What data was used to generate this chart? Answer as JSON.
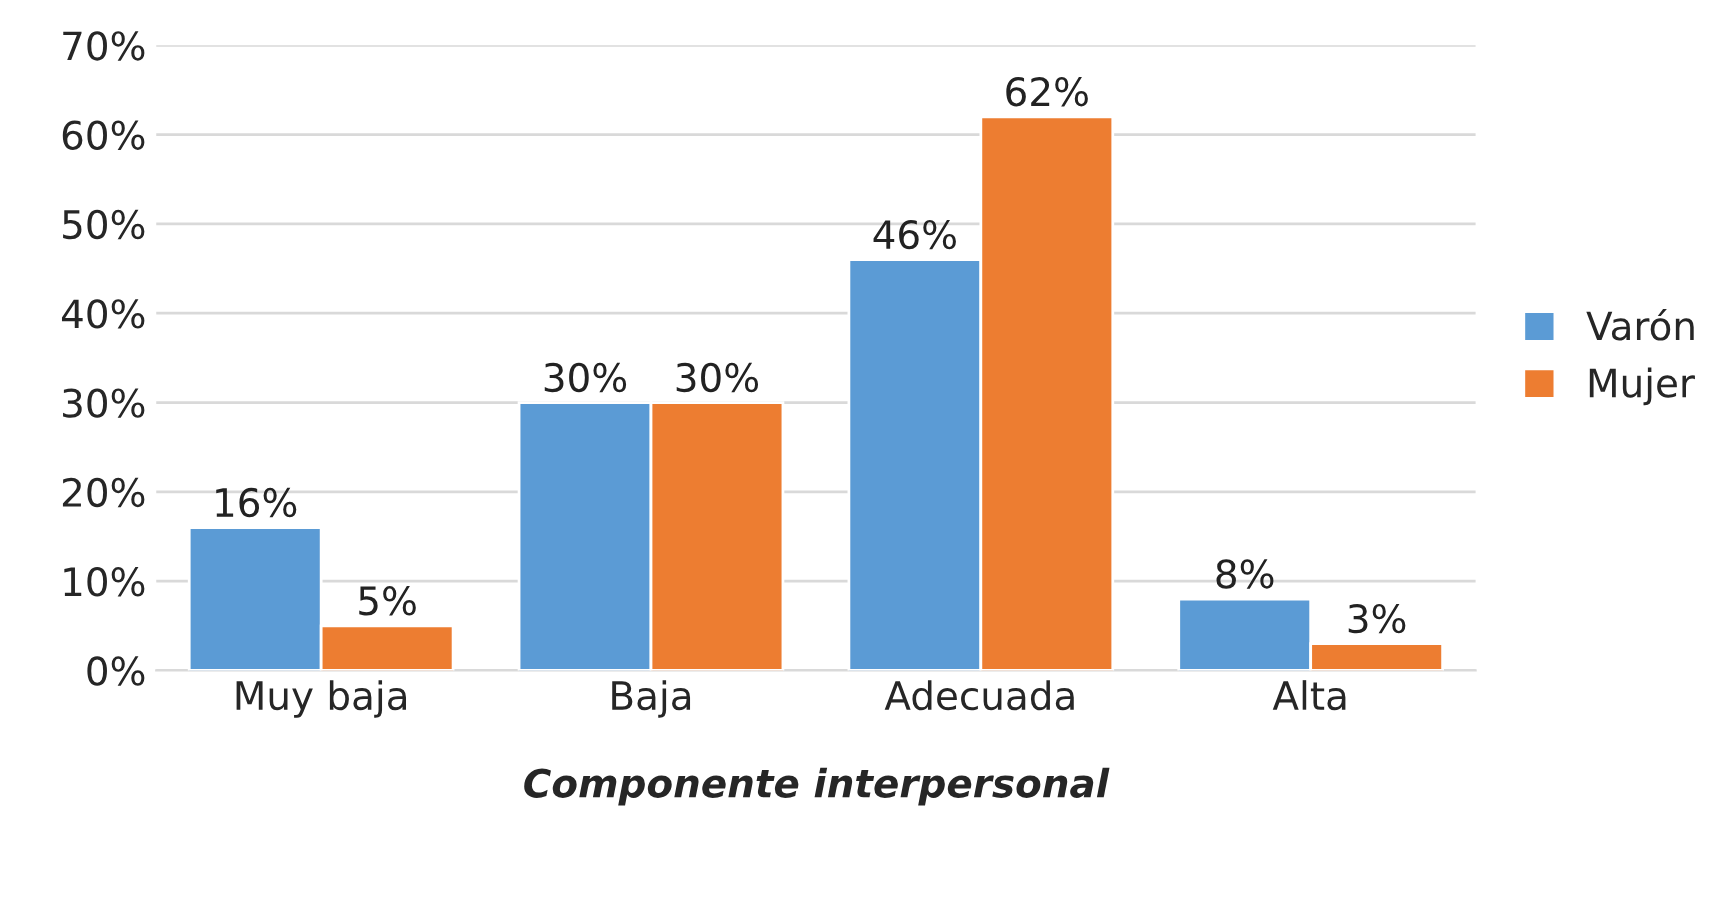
{
  "chart_data": {
    "type": "bar",
    "xlabel": "Componente interpersonal",
    "categories": [
      "Muy baja",
      "Baja",
      "Adecuada",
      "Alta"
    ],
    "series": [
      {
        "name": "Varón",
        "color": "#5b9bd5",
        "values": [
          16,
          30,
          46,
          8
        ],
        "value_labels": [
          "16%",
          "30%",
          "46%",
          "8%"
        ]
      },
      {
        "name": "Mujer",
        "color": "#ed7d31",
        "values": [
          5,
          30,
          62,
          3
        ],
        "value_labels": [
          "5%",
          "30%",
          "62%",
          "3%"
        ]
      }
    ],
    "ylim": [
      0,
      70
    ],
    "yticks": [
      {
        "value": 0,
        "label": "0%"
      },
      {
        "value": 10,
        "label": "10%"
      },
      {
        "value": 20,
        "label": "20%"
      },
      {
        "value": 30,
        "label": "30%"
      },
      {
        "value": 40,
        "label": "40%"
      },
      {
        "value": 50,
        "label": "50%"
      },
      {
        "value": 60,
        "label": "60%"
      },
      {
        "value": 70,
        "label": "70%"
      }
    ],
    "grid": "y",
    "legend": "right"
  }
}
